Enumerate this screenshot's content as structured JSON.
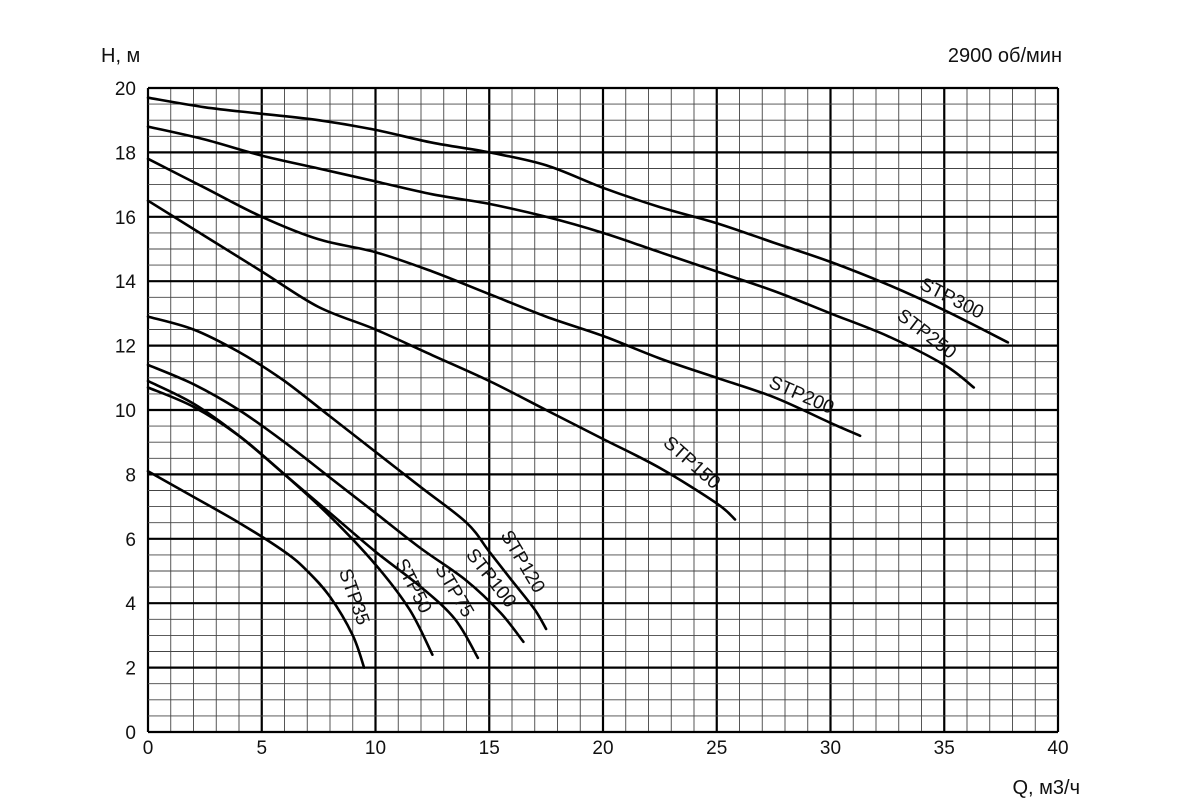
{
  "chart_data": {
    "type": "line",
    "xlabel": "Q, м3/ч",
    "ylabel": "H, м",
    "annotation": "2900 об/мин",
    "xlim": [
      0,
      40
    ],
    "ylim": [
      0,
      20
    ],
    "x_ticks": [
      0,
      5,
      10,
      15,
      20,
      25,
      30,
      35,
      40
    ],
    "y_ticks": [
      0,
      2,
      4,
      6,
      8,
      10,
      12,
      14,
      16,
      18,
      20
    ],
    "grid": true,
    "series": [
      {
        "name": "STP35",
        "points": [
          [
            0,
            8.1
          ],
          [
            2,
            7.3
          ],
          [
            4,
            6.5
          ],
          [
            6,
            5.6
          ],
          [
            7,
            5.0
          ],
          [
            8,
            4.2
          ],
          [
            9,
            3.0
          ],
          [
            9.5,
            2.0
          ]
        ]
      },
      {
        "name": "STP50",
        "points": [
          [
            0,
            10.7
          ],
          [
            2,
            10.1
          ],
          [
            4,
            9.2
          ],
          [
            6,
            8.0
          ],
          [
            8,
            6.7
          ],
          [
            10,
            5.2
          ],
          [
            11.5,
            3.8
          ],
          [
            12.5,
            2.4
          ]
        ]
      },
      {
        "name": "STP75",
        "points": [
          [
            0,
            10.9
          ],
          [
            2,
            10.2
          ],
          [
            4,
            9.2
          ],
          [
            6,
            8.0
          ],
          [
            8,
            6.8
          ],
          [
            10,
            5.6
          ],
          [
            12,
            4.5
          ],
          [
            13.5,
            3.5
          ],
          [
            14.5,
            2.3
          ]
        ]
      },
      {
        "name": "STP100",
        "points": [
          [
            0,
            11.4
          ],
          [
            2,
            10.8
          ],
          [
            4,
            10.0
          ],
          [
            6,
            9.0
          ],
          [
            8,
            7.9
          ],
          [
            10,
            6.8
          ],
          [
            12,
            5.7
          ],
          [
            14,
            4.7
          ],
          [
            15.5,
            3.7
          ],
          [
            16.5,
            2.8
          ]
        ]
      },
      {
        "name": "STP120",
        "points": [
          [
            0,
            12.9
          ],
          [
            2,
            12.5
          ],
          [
            4,
            11.8
          ],
          [
            6,
            10.9
          ],
          [
            8,
            9.8
          ],
          [
            10,
            8.7
          ],
          [
            12,
            7.6
          ],
          [
            14,
            6.5
          ],
          [
            15,
            5.6
          ],
          [
            16,
            4.7
          ],
          [
            17,
            3.8
          ],
          [
            17.5,
            3.2
          ]
        ]
      },
      {
        "name": "STP150",
        "points": [
          [
            0,
            16.5
          ],
          [
            2.5,
            15.4
          ],
          [
            5,
            14.3
          ],
          [
            7.5,
            13.2
          ],
          [
            10,
            12.5
          ],
          [
            12.5,
            11.7
          ],
          [
            15,
            10.9
          ],
          [
            17.5,
            10.0
          ],
          [
            20,
            9.1
          ],
          [
            22.5,
            8.2
          ],
          [
            25,
            7.1
          ],
          [
            25.8,
            6.6
          ]
        ]
      },
      {
        "name": "STP200",
        "points": [
          [
            0,
            17.8
          ],
          [
            2.5,
            16.9
          ],
          [
            5,
            16.0
          ],
          [
            7.5,
            15.3
          ],
          [
            10,
            14.9
          ],
          [
            12.5,
            14.3
          ],
          [
            15,
            13.6
          ],
          [
            17.5,
            12.9
          ],
          [
            20,
            12.3
          ],
          [
            22.5,
            11.6
          ],
          [
            25,
            11.0
          ],
          [
            27.5,
            10.4
          ],
          [
            30,
            9.6
          ],
          [
            31.3,
            9.2
          ]
        ]
      },
      {
        "name": "STP250",
        "points": [
          [
            0,
            18.8
          ],
          [
            2.5,
            18.4
          ],
          [
            5,
            17.9
          ],
          [
            7.5,
            17.5
          ],
          [
            10,
            17.1
          ],
          [
            12.5,
            16.7
          ],
          [
            15,
            16.4
          ],
          [
            17.5,
            16.0
          ],
          [
            20,
            15.5
          ],
          [
            22.5,
            14.9
          ],
          [
            25,
            14.3
          ],
          [
            27.5,
            13.7
          ],
          [
            30,
            13.0
          ],
          [
            32.5,
            12.3
          ],
          [
            35,
            11.4
          ],
          [
            36.3,
            10.7
          ]
        ]
      },
      {
        "name": "STP300",
        "points": [
          [
            0,
            19.7
          ],
          [
            2.5,
            19.4
          ],
          [
            5,
            19.2
          ],
          [
            7.5,
            19.0
          ],
          [
            10,
            18.7
          ],
          [
            12.5,
            18.3
          ],
          [
            15,
            18.0
          ],
          [
            17.5,
            17.6
          ],
          [
            20,
            16.9
          ],
          [
            22.5,
            16.3
          ],
          [
            25,
            15.8
          ],
          [
            27.5,
            15.2
          ],
          [
            30,
            14.6
          ],
          [
            32.5,
            13.9
          ],
          [
            35,
            13.1
          ],
          [
            37.8,
            12.1
          ]
        ]
      }
    ]
  }
}
